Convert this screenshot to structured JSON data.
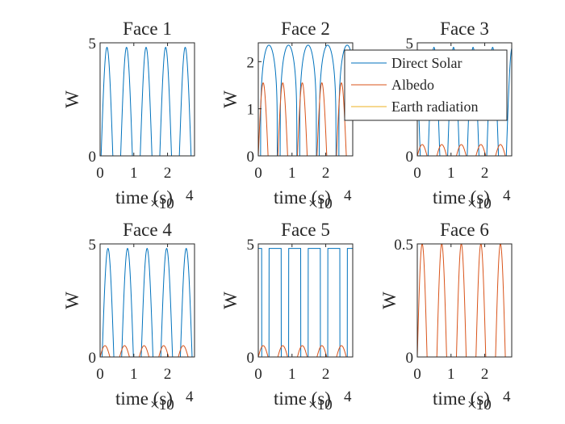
{
  "figure": {
    "legend": {
      "location": "top-right",
      "entries": [
        "Direct Solar",
        "Albedo",
        "Earth radiation"
      ]
    },
    "colors": {
      "direct_solar": "#0072BD",
      "albedo": "#D95319",
      "earth_radiation": "#EDB120",
      "axes": "#262626"
    }
  },
  "chart_data": [
    {
      "type": "line",
      "title": "Face 1",
      "xlabel": "time (s)",
      "ylabel": "W",
      "x_exponent": "×10",
      "x_exponent_power": "4",
      "xlim": [
        0,
        28000
      ],
      "ylim": [
        0,
        5
      ],
      "xticks": [
        0,
        10000,
        20000
      ],
      "xtick_labels": [
        "0",
        "1",
        "2"
      ],
      "yticks": [
        0,
        5
      ],
      "ytick_labels": [
        "0",
        "5"
      ],
      "period_s": 5800,
      "series": [
        {
          "name": "Direct Solar",
          "color": "#0072BD",
          "peak": 4.8,
          "width_frac": 0.6,
          "shape": "sine",
          "phase_s": 300
        },
        {
          "name": "Albedo",
          "color": "#D95319",
          "peak": 0,
          "width_frac": 0.5,
          "shape": "sine",
          "phase_s": 0
        },
        {
          "name": "Earth radiation",
          "color": "#EDB120",
          "peak": 0,
          "width_frac": 1,
          "shape": "flat",
          "phase_s": 0
        }
      ]
    },
    {
      "type": "line",
      "title": "Face 2",
      "xlabel": "time (s)",
      "ylabel": "W",
      "x_exponent": "×10",
      "x_exponent_power": "4",
      "xlim": [
        0,
        28000
      ],
      "ylim": [
        0,
        2.4
      ],
      "xticks": [
        0,
        10000,
        20000
      ],
      "xtick_labels": [
        "0",
        "1",
        "2"
      ],
      "yticks": [
        0,
        1,
        2
      ],
      "ytick_labels": [
        "0",
        "1",
        "2"
      ],
      "period_s": 5800,
      "series": [
        {
          "name": "Direct Solar",
          "color": "#0072BD",
          "peak": 2.35,
          "width_frac": 0.85,
          "shape": "spiky",
          "phase_s": 700
        },
        {
          "name": "Albedo",
          "color": "#D95319",
          "peak": 1.55,
          "width_frac": 0.5,
          "shape": "sine",
          "phase_s": 0
        },
        {
          "name": "Earth radiation",
          "color": "#EDB120",
          "peak": 0,
          "width_frac": 1,
          "shape": "flat",
          "phase_s": 0
        }
      ]
    },
    {
      "type": "line",
      "title": "Face 3",
      "xlabel": "time (s)",
      "ylabel": "W",
      "x_exponent": "×10",
      "x_exponent_power": "4",
      "xlim": [
        0,
        28000
      ],
      "ylim": [
        0,
        5
      ],
      "xticks": [
        0,
        10000,
        20000
      ],
      "xtick_labels": [
        "0",
        "1",
        "2"
      ],
      "yticks": [
        0,
        5
      ],
      "ytick_labels": [
        "0",
        "5"
      ],
      "period_s": 5800,
      "series": [
        {
          "name": "Direct Solar",
          "color": "#0072BD",
          "peak": 4.8,
          "width_frac": 0.6,
          "shape": "sine",
          "phase_s": 3200
        },
        {
          "name": "Albedo",
          "color": "#D95319",
          "peak": 0.5,
          "width_frac": 0.5,
          "shape": "sine",
          "phase_s": 0
        },
        {
          "name": "Earth radiation",
          "color": "#EDB120",
          "peak": 0,
          "width_frac": 1,
          "shape": "flat",
          "phase_s": 0
        }
      ]
    },
    {
      "type": "line",
      "title": "Face 4",
      "xlabel": "time (s)",
      "ylabel": "W",
      "x_exponent": "×10",
      "x_exponent_power": "4",
      "xlim": [
        0,
        28000
      ],
      "ylim": [
        0,
        5
      ],
      "xticks": [
        0,
        10000,
        20000
      ],
      "xtick_labels": [
        "0",
        "1",
        "2"
      ],
      "yticks": [
        0,
        5
      ],
      "ytick_labels": [
        "0",
        "5"
      ],
      "period_s": 5800,
      "series": [
        {
          "name": "Direct Solar",
          "color": "#0072BD",
          "peak": 4.8,
          "width_frac": 0.6,
          "shape": "sine",
          "phase_s": 600
        },
        {
          "name": "Albedo",
          "color": "#D95319",
          "peak": 0.5,
          "width_frac": 0.5,
          "shape": "sine",
          "phase_s": 0
        },
        {
          "name": "Earth radiation",
          "color": "#EDB120",
          "peak": 0,
          "width_frac": 1,
          "shape": "flat",
          "phase_s": 0
        }
      ]
    },
    {
      "type": "line",
      "title": "Face 5",
      "xlabel": "time (s)",
      "ylabel": "W",
      "x_exponent": "×10",
      "x_exponent_power": "4",
      "xlim": [
        0,
        28000
      ],
      "ylim": [
        0,
        5
      ],
      "xticks": [
        0,
        10000,
        20000
      ],
      "xtick_labels": [
        "0",
        "1",
        "2"
      ],
      "yticks": [
        0,
        5
      ],
      "ytick_labels": [
        "0",
        "5"
      ],
      "period_s": 5800,
      "series": [
        {
          "name": "Direct Solar",
          "color": "#0072BD",
          "peak": 4.8,
          "width_frac": 0.62,
          "shape": "square",
          "phase_s": 3200
        },
        {
          "name": "Albedo",
          "color": "#D95319",
          "peak": 0.5,
          "width_frac": 0.5,
          "shape": "sine",
          "phase_s": 0
        },
        {
          "name": "Earth radiation",
          "color": "#EDB120",
          "peak": 0,
          "width_frac": 1,
          "shape": "flat",
          "phase_s": 0
        }
      ]
    },
    {
      "type": "line",
      "title": "Face 6",
      "xlabel": "time (s)",
      "ylabel": "W",
      "x_exponent": "×10",
      "x_exponent_power": "4",
      "xlim": [
        0,
        28000
      ],
      "ylim": [
        0,
        0.5
      ],
      "xticks": [
        0,
        10000,
        20000
      ],
      "xtick_labels": [
        "0",
        "1",
        "2"
      ],
      "yticks": [
        0,
        0.5
      ],
      "ytick_labels": [
        "0",
        "0.5"
      ],
      "period_s": 5800,
      "series": [
        {
          "name": "Direct Solar",
          "color": "#0072BD",
          "peak": 0,
          "width_frac": 0.6,
          "shape": "sine",
          "phase_s": 0
        },
        {
          "name": "Albedo",
          "color": "#D95319",
          "peak": 0.5,
          "width_frac": 0.5,
          "shape": "sine",
          "phase_s": 0
        },
        {
          "name": "Earth radiation",
          "color": "#EDB120",
          "peak": 0,
          "width_frac": 1,
          "shape": "flat",
          "phase_s": 0
        }
      ]
    }
  ]
}
